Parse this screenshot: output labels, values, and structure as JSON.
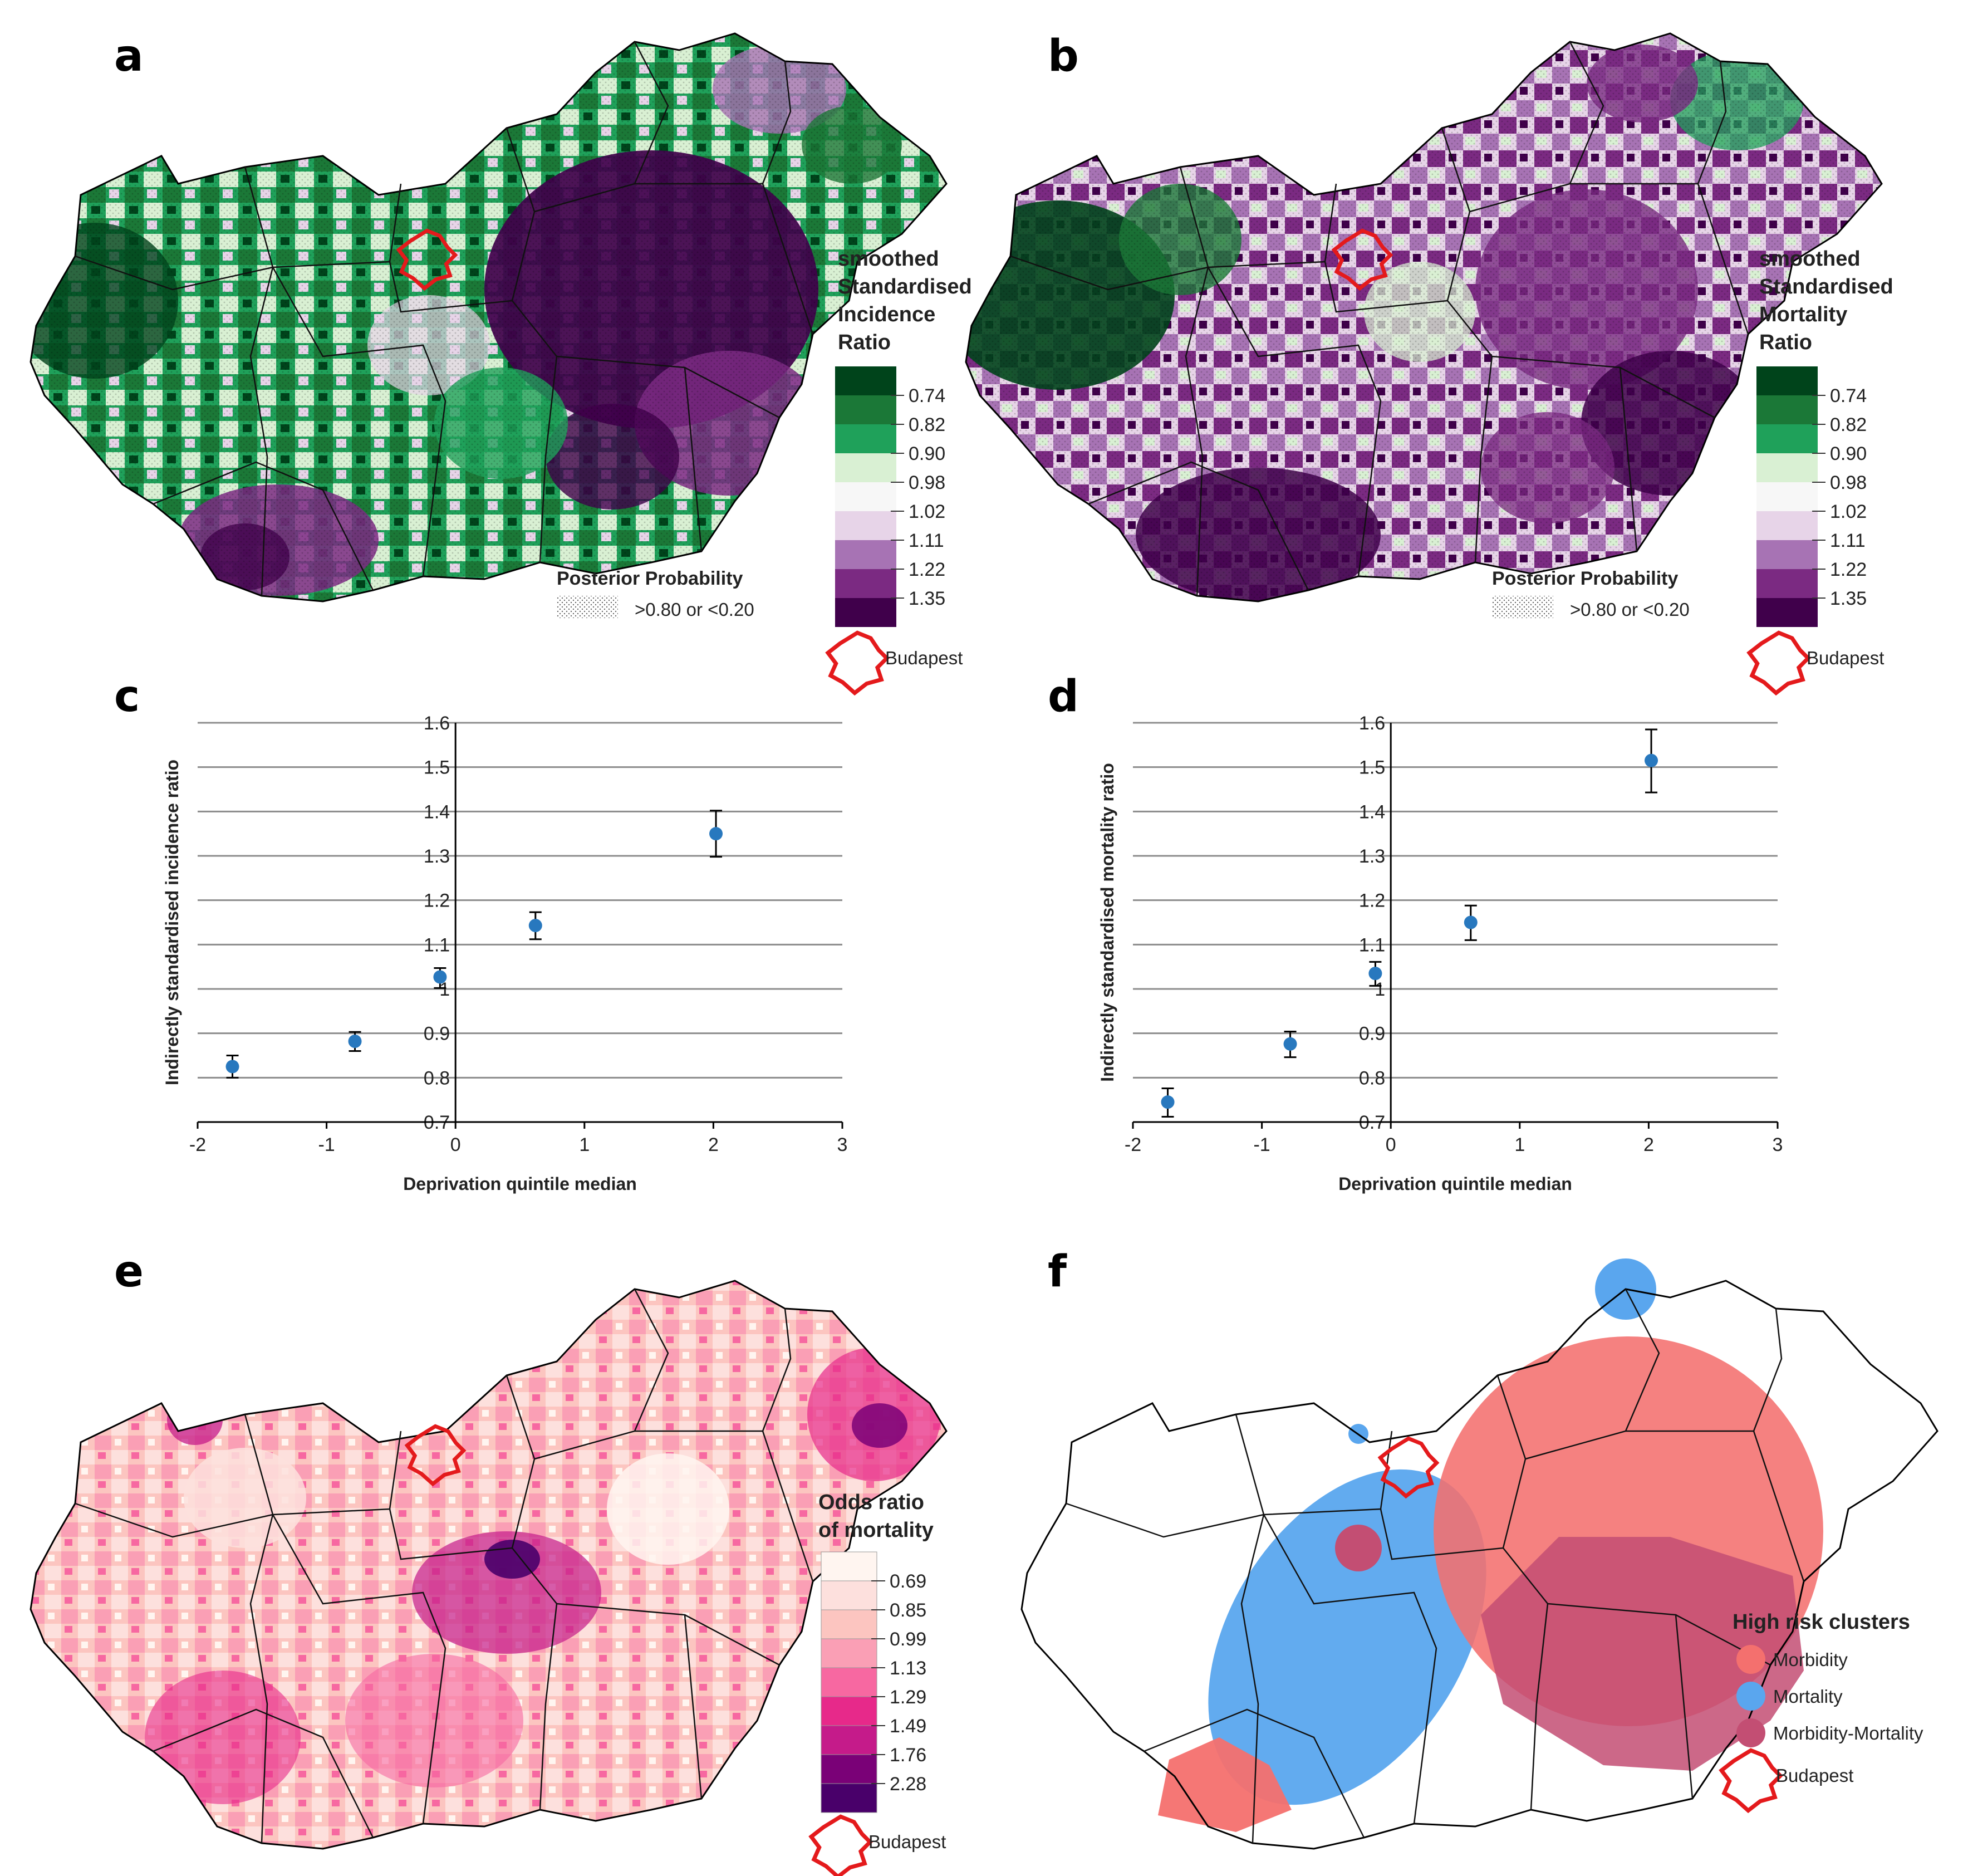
{
  "figure": {
    "panel_labels": [
      "a",
      "b",
      "c",
      "d",
      "e",
      "f"
    ],
    "budapest_label": "Budapest"
  },
  "panel_a": {
    "legend_title_lines": [
      "smoothed",
      "Standardised",
      "Incidence",
      "Ratio"
    ],
    "legend_breaks": [
      "0.74",
      "0.82",
      "0.90",
      "0.98",
      "1.02",
      "1.11",
      "1.22",
      "1.35"
    ],
    "legend_colors": [
      "#00441b",
      "#1b7837",
      "#1fa15a",
      "#d9f0d3",
      "#f7f7f7",
      "#e7d4e8",
      "#a773b4",
      "#7b2a82",
      "#40004b"
    ],
    "posterior_title": "Posterior Probability",
    "posterior_text": ">0.80 or <0.20"
  },
  "panel_b": {
    "legend_title_lines": [
      "smoothed",
      "Standardised",
      "Mortality",
      "Ratio"
    ],
    "legend_breaks": [
      "0.74",
      "0.82",
      "0.90",
      "0.98",
      "1.02",
      "1.11",
      "1.22",
      "1.35"
    ],
    "legend_colors": [
      "#00441b",
      "#1b7837",
      "#1fa15a",
      "#d9f0d3",
      "#f7f7f7",
      "#e7d4e8",
      "#a773b4",
      "#7b2a82",
      "#40004b"
    ],
    "posterior_title": "Posterior Probability",
    "posterior_text": ">0.80 or <0.20"
  },
  "panel_e": {
    "legend_title_lines": [
      "Odds ratio",
      "of mortality"
    ],
    "legend_breaks": [
      "0.69",
      "0.85",
      "0.99",
      "1.13",
      "1.29",
      "1.49",
      "1.76",
      "2.28"
    ],
    "legend_colors": [
      "#fff5f0",
      "#fde0dd",
      "#fcc5c0",
      "#fa9fb5",
      "#f768a1",
      "#e7298a",
      "#c51b8a",
      "#7a0177",
      "#49006a"
    ]
  },
  "panel_f": {
    "legend_title": "High risk clusters",
    "clusters": [
      {
        "label": "Morbidity",
        "color": "#f4706e"
      },
      {
        "label": "Mortality",
        "color": "#5aa6ee"
      },
      {
        "label": "Morbidity-Mortality",
        "color": "#c34e73"
      }
    ]
  },
  "chart_data": [
    {
      "type": "scatter",
      "panel": "c",
      "xlabel": "Deprivation quintile median",
      "ylabel": "Indirectly standardised incidence ratio",
      "xlim": [
        -2,
        3
      ],
      "ylim": [
        0.7,
        1.6
      ],
      "xticks": [
        "-2",
        "-1",
        "0",
        "1",
        "2",
        "3"
      ],
      "yticks": [
        "0.7",
        "0.8",
        "0.9",
        "1",
        "1.1",
        "1.2",
        "1.3",
        "1.4",
        "1.5",
        "1.6"
      ],
      "grid": true,
      "x": [
        -1.73,
        -0.78,
        -0.12,
        0.62,
        2.02
      ],
      "y": [
        0.825,
        0.882,
        1.027,
        1.143,
        1.35
      ],
      "err_low": [
        0.8,
        0.86,
        1.002,
        1.112,
        1.298
      ],
      "err_high": [
        0.85,
        0.903,
        1.047,
        1.173,
        1.402
      ]
    },
    {
      "type": "scatter",
      "panel": "d",
      "xlabel": "Deprivation quintile median",
      "ylabel": "Indirectly standardised mortality ratio",
      "xlim": [
        -2,
        3
      ],
      "ylim": [
        0.7,
        1.6
      ],
      "xticks": [
        "-2",
        "-1",
        "0",
        "1",
        "2",
        "3"
      ],
      "yticks": [
        "0.7",
        "0.8",
        "0.9",
        "1",
        "1.1",
        "1.2",
        "1.3",
        "1.4",
        "1.5",
        "1.6"
      ],
      "grid": true,
      "x": [
        -1.73,
        -0.78,
        -0.12,
        0.62,
        2.02
      ],
      "y": [
        0.745,
        0.876,
        1.035,
        1.15,
        1.515
      ],
      "err_low": [
        0.712,
        0.846,
        1.007,
        1.11,
        1.443
      ],
      "err_high": [
        0.776,
        0.904,
        1.061,
        1.188,
        1.585
      ]
    }
  ]
}
